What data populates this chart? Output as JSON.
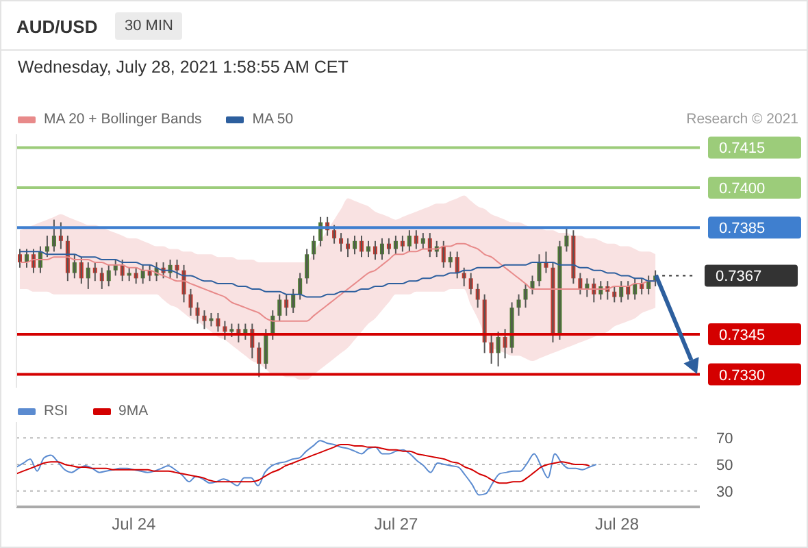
{
  "chart_data": [
    {
      "type": "candlestick",
      "title": "AUD/USD",
      "subtitle": "Wednesday, July 28, 2021 1:58:55 AM CET",
      "annotations": [
        "30 MIN",
        "Research © 2021"
      ],
      "categories": [
        null,
        null,
        null,
        null,
        null,
        null,
        null,
        null,
        null,
        null,
        null,
        null,
        null,
        null,
        null,
        null,
        null,
        null,
        null,
        null,
        null,
        null,
        null,
        null,
        null,
        null,
        null,
        null,
        null,
        null,
        null,
        null,
        null,
        null,
        null,
        null,
        null,
        null,
        null,
        null,
        null,
        null,
        null,
        null,
        null,
        null,
        null,
        null,
        null,
        null,
        null,
        null,
        null,
        null,
        null,
        null,
        null,
        null,
        null,
        null,
        null,
        null,
        null,
        null,
        null,
        null,
        null,
        null,
        null,
        null,
        null,
        null,
        null,
        null,
        null,
        null,
        null,
        null,
        null,
        null,
        null,
        null,
        null,
        null,
        null,
        null,
        null,
        null,
        null,
        null,
        null,
        null,
        null,
        null,
        null,
        null,
        null,
        null,
        null,
        null
      ],
      "ohlc": [
        [
          0.7375,
          0.7377,
          0.737,
          0.7372
        ],
        [
          0.7372,
          0.7377,
          0.737,
          0.7375
        ],
        [
          0.7375,
          0.7377,
          0.7368,
          0.737
        ],
        [
          0.737,
          0.7378,
          0.7368,
          0.7376
        ],
        [
          0.7376,
          0.7382,
          0.7374,
          0.7378
        ],
        [
          0.7378,
          0.7388,
          0.7376,
          0.7382
        ],
        [
          0.7382,
          0.7387,
          0.7377,
          0.738
        ],
        [
          0.738,
          0.7382,
          0.7365,
          0.7368
        ],
        [
          0.7368,
          0.7375,
          0.7366,
          0.7372
        ],
        [
          0.7372,
          0.7374,
          0.7364,
          0.7366
        ],
        [
          0.7366,
          0.7372,
          0.7362,
          0.737
        ],
        [
          0.737,
          0.7372,
          0.7365,
          0.7368
        ],
        [
          0.7368,
          0.737,
          0.7362,
          0.7365
        ],
        [
          0.7365,
          0.7371,
          0.7363,
          0.7369
        ],
        [
          0.7369,
          0.7373,
          0.7367,
          0.7371
        ],
        [
          0.7371,
          0.7373,
          0.7365,
          0.7367
        ],
        [
          0.7367,
          0.737,
          0.7365,
          0.7368
        ],
        [
          0.7368,
          0.737,
          0.7364,
          0.7366
        ],
        [
          0.7366,
          0.7371,
          0.7364,
          0.7369
        ],
        [
          0.7369,
          0.7371,
          0.7365,
          0.7367
        ],
        [
          0.7367,
          0.7372,
          0.7365,
          0.737
        ],
        [
          0.737,
          0.7372,
          0.7366,
          0.7368
        ],
        [
          0.7368,
          0.7373,
          0.7366,
          0.7371
        ],
        [
          0.7371,
          0.7373,
          0.7366,
          0.7369
        ],
        [
          0.7369,
          0.7371,
          0.7357,
          0.736
        ],
        [
          0.736,
          0.7362,
          0.7352,
          0.7355
        ],
        [
          0.7355,
          0.7357,
          0.7349,
          0.7352
        ],
        [
          0.7352,
          0.7354,
          0.7347,
          0.735
        ],
        [
          0.735,
          0.7353,
          0.7348,
          0.7351
        ],
        [
          0.7351,
          0.7353,
          0.7346,
          0.7348
        ],
        [
          0.7348,
          0.735,
          0.7343,
          0.7346
        ],
        [
          0.7346,
          0.7349,
          0.7344,
          0.7347
        ],
        [
          0.7347,
          0.7349,
          0.7342,
          0.7345
        ],
        [
          0.7345,
          0.7349,
          0.7343,
          0.7347
        ],
        [
          0.7347,
          0.7349,
          0.7336,
          0.734
        ],
        [
          0.734,
          0.7342,
          0.7329,
          0.7334
        ],
        [
          0.7334,
          0.7347,
          0.7332,
          0.7345
        ],
        [
          0.7345,
          0.7354,
          0.7343,
          0.7352
        ],
        [
          0.7352,
          0.736,
          0.735,
          0.7358
        ],
        [
          0.7358,
          0.736,
          0.7352,
          0.7355
        ],
        [
          0.7355,
          0.7362,
          0.7353,
          0.736
        ],
        [
          0.736,
          0.7368,
          0.7358,
          0.7366
        ],
        [
          0.7366,
          0.7377,
          0.7364,
          0.7375
        ],
        [
          0.7375,
          0.7382,
          0.7373,
          0.738
        ],
        [
          0.738,
          0.7389,
          0.7378,
          0.7387
        ],
        [
          0.7387,
          0.7389,
          0.7382,
          0.7384
        ],
        [
          0.7384,
          0.7386,
          0.7379,
          0.7381
        ],
        [
          0.7381,
          0.7383,
          0.7376,
          0.7379
        ],
        [
          0.7379,
          0.7381,
          0.7374,
          0.7377
        ],
        [
          0.7377,
          0.7382,
          0.7375,
          0.738
        ],
        [
          0.738,
          0.7382,
          0.7374,
          0.7376
        ],
        [
          0.7376,
          0.738,
          0.7374,
          0.7378
        ],
        [
          0.7378,
          0.738,
          0.7373,
          0.7375
        ],
        [
          0.7375,
          0.7381,
          0.7373,
          0.7379
        ],
        [
          0.7379,
          0.7381,
          0.7375,
          0.7377
        ],
        [
          0.7377,
          0.7382,
          0.7375,
          0.738
        ],
        [
          0.738,
          0.7382,
          0.7376,
          0.7378
        ],
        [
          0.7378,
          0.7384,
          0.7376,
          0.7382
        ],
        [
          0.7382,
          0.7384,
          0.7377,
          0.7379
        ],
        [
          0.7379,
          0.7383,
          0.7377,
          0.7381
        ],
        [
          0.7381,
          0.7383,
          0.7374,
          0.7376
        ],
        [
          0.7376,
          0.738,
          0.7374,
          0.7378
        ],
        [
          0.7378,
          0.738,
          0.737,
          0.7372
        ],
        [
          0.7372,
          0.7376,
          0.737,
          0.7374
        ],
        [
          0.7374,
          0.7376,
          0.7366,
          0.7368
        ],
        [
          0.7368,
          0.737,
          0.7363,
          0.7366
        ],
        [
          0.7366,
          0.7368,
          0.736,
          0.7362
        ],
        [
          0.7362,
          0.7364,
          0.7355,
          0.7358
        ],
        [
          0.7358,
          0.736,
          0.7338,
          0.7342
        ],
        [
          0.7342,
          0.7345,
          0.7334,
          0.7338
        ],
        [
          0.7338,
          0.7346,
          0.7333,
          0.7344
        ],
        [
          0.7344,
          0.7347,
          0.7336,
          0.734
        ],
        [
          0.734,
          0.7357,
          0.7338,
          0.7355
        ],
        [
          0.7355,
          0.736,
          0.7352,
          0.7358
        ],
        [
          0.7358,
          0.7364,
          0.7355,
          0.7362
        ],
        [
          0.7362,
          0.7367,
          0.736,
          0.7365
        ],
        [
          0.7365,
          0.7375,
          0.7363,
          0.7372
        ],
        [
          0.7372,
          0.7376,
          0.7368,
          0.737
        ],
        [
          0.737,
          0.7372,
          0.7342,
          0.7345
        ],
        [
          0.7345,
          0.738,
          0.7343,
          0.7378
        ],
        [
          0.7378,
          0.7385,
          0.7376,
          0.7382
        ],
        [
          0.7382,
          0.7384,
          0.7364,
          0.7366
        ],
        [
          0.7366,
          0.7368,
          0.736,
          0.7362
        ],
        [
          0.7362,
          0.7366,
          0.7359,
          0.7364
        ],
        [
          0.7364,
          0.7366,
          0.7357,
          0.736
        ],
        [
          0.736,
          0.7365,
          0.7358,
          0.7363
        ],
        [
          0.7363,
          0.7365,
          0.7358,
          0.7361
        ],
        [
          0.7361,
          0.7363,
          0.7357,
          0.7359
        ],
        [
          0.7359,
          0.7365,
          0.7357,
          0.7363
        ],
        [
          0.7363,
          0.7365,
          0.7358,
          0.736
        ],
        [
          0.736,
          0.7366,
          0.7358,
          0.7364
        ],
        [
          0.7364,
          0.7366,
          0.736,
          0.7362
        ],
        [
          0.7362,
          0.7367,
          0.736,
          0.7365
        ],
        [
          0.7365,
          0.7369,
          0.7363,
          0.7367
        ],
        null,
        null,
        null,
        null,
        null,
        null
      ],
      "series": [
        {
          "type": "line",
          "name": "MA 20 + Bollinger Bands",
          "color": "#e88a8a",
          "values": [
            0.7372,
            0.7372,
            0.7373,
            0.7373,
            0.7373,
            0.7374,
            0.7374,
            0.7374,
            0.7373,
            0.7373,
            0.7373,
            0.7372,
            0.7372,
            0.7371,
            0.7371,
            0.7371,
            0.737,
            0.737,
            0.7369,
            0.7369,
            0.7368,
            0.7367,
            0.7366,
            0.7365,
            0.7365,
            0.7364,
            0.7363,
            0.7362,
            0.7361,
            0.736,
            0.7359,
            0.7357,
            0.7356,
            0.7355,
            0.7354,
            0.7353,
            0.7351,
            0.735,
            0.735,
            0.735,
            0.735,
            0.735,
            0.735,
            0.7352,
            0.7354,
            0.7356,
            0.7358,
            0.736,
            0.7362,
            0.7364,
            0.7366,
            0.7368,
            0.7369,
            0.7371,
            0.7373,
            0.7375,
            0.7375,
            0.7376,
            0.7376,
            0.7377,
            0.7377,
            0.7377,
            0.7378,
            0.7378,
            0.7379,
            0.7379,
            0.7378,
            0.7377,
            0.7375,
            0.7374,
            0.7372,
            0.737,
            0.7368,
            0.7366,
            0.7364,
            0.7362,
            0.7362,
            0.7362,
            0.7362,
            0.7362,
            0.7362,
            0.7362,
            0.7362,
            0.7362,
            0.7362,
            0.7362,
            0.7362,
            0.7363,
            0.7363,
            0.7363,
            0.7364,
            0.7364,
            0.7365,
            0.7365,
            null,
            null,
            null,
            null,
            null,
            null
          ],
          "upper": [
            0.7384,
            0.7385,
            0.7386,
            0.7387,
            0.7388,
            0.7389,
            0.739,
            0.7389,
            0.7388,
            0.7387,
            0.7386,
            0.7386,
            0.7385,
            0.7384,
            0.7383,
            0.7382,
            0.7381,
            0.7381,
            0.738,
            0.7379,
            0.7378,
            0.7378,
            0.7377,
            0.7377,
            0.7376,
            0.7376,
            0.7375,
            0.7375,
            0.7375,
            0.7374,
            0.7374,
            0.7374,
            0.7373,
            0.7373,
            0.7373,
            0.7372,
            0.7372,
            0.7372,
            0.7372,
            0.7372,
            0.7372,
            0.7372,
            0.7372,
            0.7376,
            0.738,
            0.7384,
            0.7388,
            0.7392,
            0.7396,
            0.7395,
            0.7394,
            0.7393,
            0.7391,
            0.739,
            0.7389,
            0.7388,
            0.7389,
            0.739,
            0.7391,
            0.7392,
            0.7393,
            0.7394,
            0.7394,
            0.7395,
            0.7396,
            0.7397,
            0.7395,
            0.7393,
            0.7392,
            0.739,
            0.7389,
            0.7388,
            0.7387,
            0.7387,
            0.7386,
            0.7385,
            0.7385,
            0.7384,
            0.7384,
            0.7383,
            0.7383,
            0.7382,
            0.7382,
            0.7381,
            0.7381,
            0.738,
            0.7379,
            0.7379,
            0.7378,
            0.7378,
            0.7377,
            0.7376,
            0.7376,
            0.7375,
            null,
            null,
            null,
            null,
            null,
            null
          ],
          "lower": [
            0.7362,
            0.7362,
            0.7361,
            0.7361,
            0.7361,
            0.736,
            0.736,
            0.736,
            0.736,
            0.736,
            0.736,
            0.736,
            0.736,
            0.736,
            0.736,
            0.736,
            0.736,
            0.736,
            0.736,
            0.736,
            0.736,
            0.7358,
            0.7356,
            0.7355,
            0.7353,
            0.7351,
            0.735,
            0.7348,
            0.7346,
            0.7344,
            0.7343,
            0.7341,
            0.7339,
            0.7337,
            0.7335,
            0.7334,
            0.7332,
            0.733,
            0.733,
            0.7329,
            0.7329,
            0.7328,
            0.7328,
            0.733,
            0.7332,
            0.7334,
            0.7336,
            0.7338,
            0.734,
            0.7343,
            0.7346,
            0.7349,
            0.7351,
            0.7354,
            0.7357,
            0.736,
            0.736,
            0.736,
            0.7361,
            0.7361,
            0.7361,
            0.7361,
            0.7361,
            0.7362,
            0.7362,
            0.7362,
            0.7356,
            0.7351,
            0.7345,
            0.734,
            0.7339,
            0.7338,
            0.7337,
            0.7337,
            0.7336,
            0.7335,
            0.7336,
            0.7337,
            0.7338,
            0.7339,
            0.734,
            0.7341,
            0.7342,
            0.7343,
            0.7344,
            0.7345,
            0.7346,
            0.7348,
            0.7349,
            0.735,
            0.7351,
            0.7353,
            0.7354,
            0.7355,
            null,
            null,
            null,
            null,
            null,
            null
          ]
        },
        {
          "type": "line",
          "name": "MA 50",
          "color": "#2d5f9e",
          "values": [
            0.7376,
            0.7376,
            0.7376,
            0.7376,
            0.7375,
            0.7375,
            0.7375,
            0.7375,
            0.7375,
            0.7374,
            0.7374,
            0.7374,
            0.7373,
            0.7373,
            0.7373,
            0.7372,
            0.7372,
            0.7372,
            0.7371,
            0.7371,
            0.737,
            0.7369,
            0.7369,
            0.7368,
            0.7367,
            0.7367,
            0.7366,
            0.7365,
            0.7365,
            0.7364,
            0.7364,
            0.7364,
            0.7363,
            0.7363,
            0.7362,
            0.7362,
            0.7361,
            0.7361,
            0.7361,
            0.736,
            0.736,
            0.736,
            0.7359,
            0.7359,
            0.7359,
            0.736,
            0.736,
            0.7361,
            0.7361,
            0.7361,
            0.7362,
            0.7362,
            0.7363,
            0.7363,
            0.7364,
            0.7364,
            0.7364,
            0.7365,
            0.7365,
            0.7366,
            0.7366,
            0.7367,
            0.7367,
            0.7368,
            0.7368,
            0.7369,
            0.7369,
            0.737,
            0.737,
            0.737,
            0.737,
            0.7371,
            0.7371,
            0.7371,
            0.7371,
            0.7372,
            0.7372,
            0.7372,
            0.7372,
            0.7371,
            0.7371,
            0.7371,
            0.737,
            0.737,
            0.7369,
            0.7369,
            0.7368,
            0.7368,
            0.7367,
            0.7367,
            0.7366,
            0.7366,
            0.7365,
            0.7365,
            null,
            null,
            null,
            null,
            null,
            null
          ]
        }
      ],
      "ref_lines": [
        {
          "axis": "y",
          "value": 0.7415,
          "label": "0.7415",
          "color": "#9ccc7a"
        },
        {
          "axis": "y",
          "value": 0.74,
          "label": "0.7400",
          "color": "#9ccc7a"
        },
        {
          "axis": "y",
          "value": 0.7385,
          "label": "0.7385",
          "color": "#3f7fcf"
        },
        {
          "axis": "y",
          "value": 0.7367,
          "label": "0.7367",
          "color": "#333333",
          "line_style": "dotted"
        },
        {
          "axis": "y",
          "value": 0.7345,
          "label": "0.7345",
          "color": "#d40000"
        },
        {
          "axis": "y",
          "value": 0.733,
          "label": "0.7330",
          "color": "#d40000"
        }
      ],
      "ylim": [
        0.7325,
        0.742
      ],
      "tick_labels": false,
      "legend": "top left"
    },
    {
      "type": "line",
      "categories": [
        null,
        null,
        null,
        null,
        null,
        null,
        null,
        null,
        null,
        null,
        null,
        null,
        null,
        null,
        null,
        null,
        null,
        "Jul 24",
        null,
        null,
        null,
        null,
        null,
        null,
        null,
        null,
        null,
        null,
        null,
        null,
        null,
        null,
        null,
        null,
        null,
        null,
        null,
        null,
        null,
        null,
        null,
        null,
        null,
        null,
        null,
        null,
        null,
        null,
        null,
        null,
        null,
        null,
        null,
        null,
        null,
        "Jul 27",
        null,
        null,
        null,
        null,
        null,
        null,
        null,
        null,
        null,
        null,
        null,
        null,
        null,
        null,
        null,
        null,
        null,
        null,
        null,
        null,
        null,
        null,
        null,
        null,
        null,
        null,
        null,
        null,
        null,
        null,
        null,
        "Jul 28",
        null,
        null,
        null,
        null,
        null,
        null,
        null,
        null,
        null,
        null,
        null,
        null
      ],
      "ylim": [
        18,
        82
      ],
      "tick_labels": "x",
      "legend": "top left",
      "series": [
        {
          "name": "RSI",
          "color": "#5b8bd0",
          "values": [
            48,
            51,
            54,
            45,
            55,
            57,
            52,
            46,
            44,
            47,
            49,
            47,
            44,
            45,
            46,
            47,
            47,
            46,
            45,
            44,
            45,
            47,
            49,
            46,
            42,
            37,
            41,
            39,
            36,
            37,
            39,
            37,
            34,
            40,
            40,
            34,
            44,
            49,
            51,
            52,
            54,
            55,
            60,
            64,
            68,
            66,
            65,
            63,
            62,
            60,
            58,
            62,
            63,
            58,
            58,
            60,
            61,
            58,
            53,
            49,
            44,
            51,
            50,
            49,
            48,
            42,
            35,
            27,
            28,
            36,
            43,
            44,
            45,
            45,
            51,
            58,
            49,
            40,
            58,
            51,
            47,
            47,
            46,
            48,
            50,
            null,
            null,
            null,
            null,
            null,
            null,
            null,
            null,
            null,
            null,
            null,
            null,
            null,
            null,
            null
          ]
        },
        {
          "name": "9MA",
          "color": "#d40000",
          "values": [
            43,
            45,
            47,
            49,
            51,
            52,
            52,
            50,
            49,
            48,
            48,
            47,
            47,
            47,
            46,
            46,
            46,
            46,
            46,
            46,
            45,
            45,
            45,
            44,
            43,
            42,
            41,
            40,
            38,
            37,
            37,
            37,
            37,
            37,
            37,
            38,
            41,
            44,
            46,
            49,
            51,
            53,
            55,
            57,
            59,
            61,
            63,
            65,
            65,
            64,
            64,
            63,
            63,
            62,
            61,
            61,
            60,
            60,
            58,
            57,
            56,
            55,
            54,
            52,
            51,
            48,
            46,
            43,
            41,
            38,
            36,
            36,
            37,
            37,
            40,
            44,
            48,
            50,
            51,
            52,
            51,
            50,
            50,
            49,
            null,
            null,
            null,
            null,
            null,
            null,
            null,
            null,
            null,
            null,
            null,
            null,
            null,
            null,
            null,
            null
          ]
        }
      ],
      "ref_lines": [
        {
          "axis": "y",
          "value": 70,
          "label": "70",
          "color": "#bbbbbb",
          "line_style": "dotted"
        },
        {
          "axis": "y",
          "value": 50,
          "label": "50",
          "color": "#bbbbbb",
          "line_style": "dotted"
        },
        {
          "axis": "y",
          "value": 30,
          "label": "30",
          "color": "#bbbbbb",
          "line_style": "dotted"
        }
      ]
    }
  ]
}
